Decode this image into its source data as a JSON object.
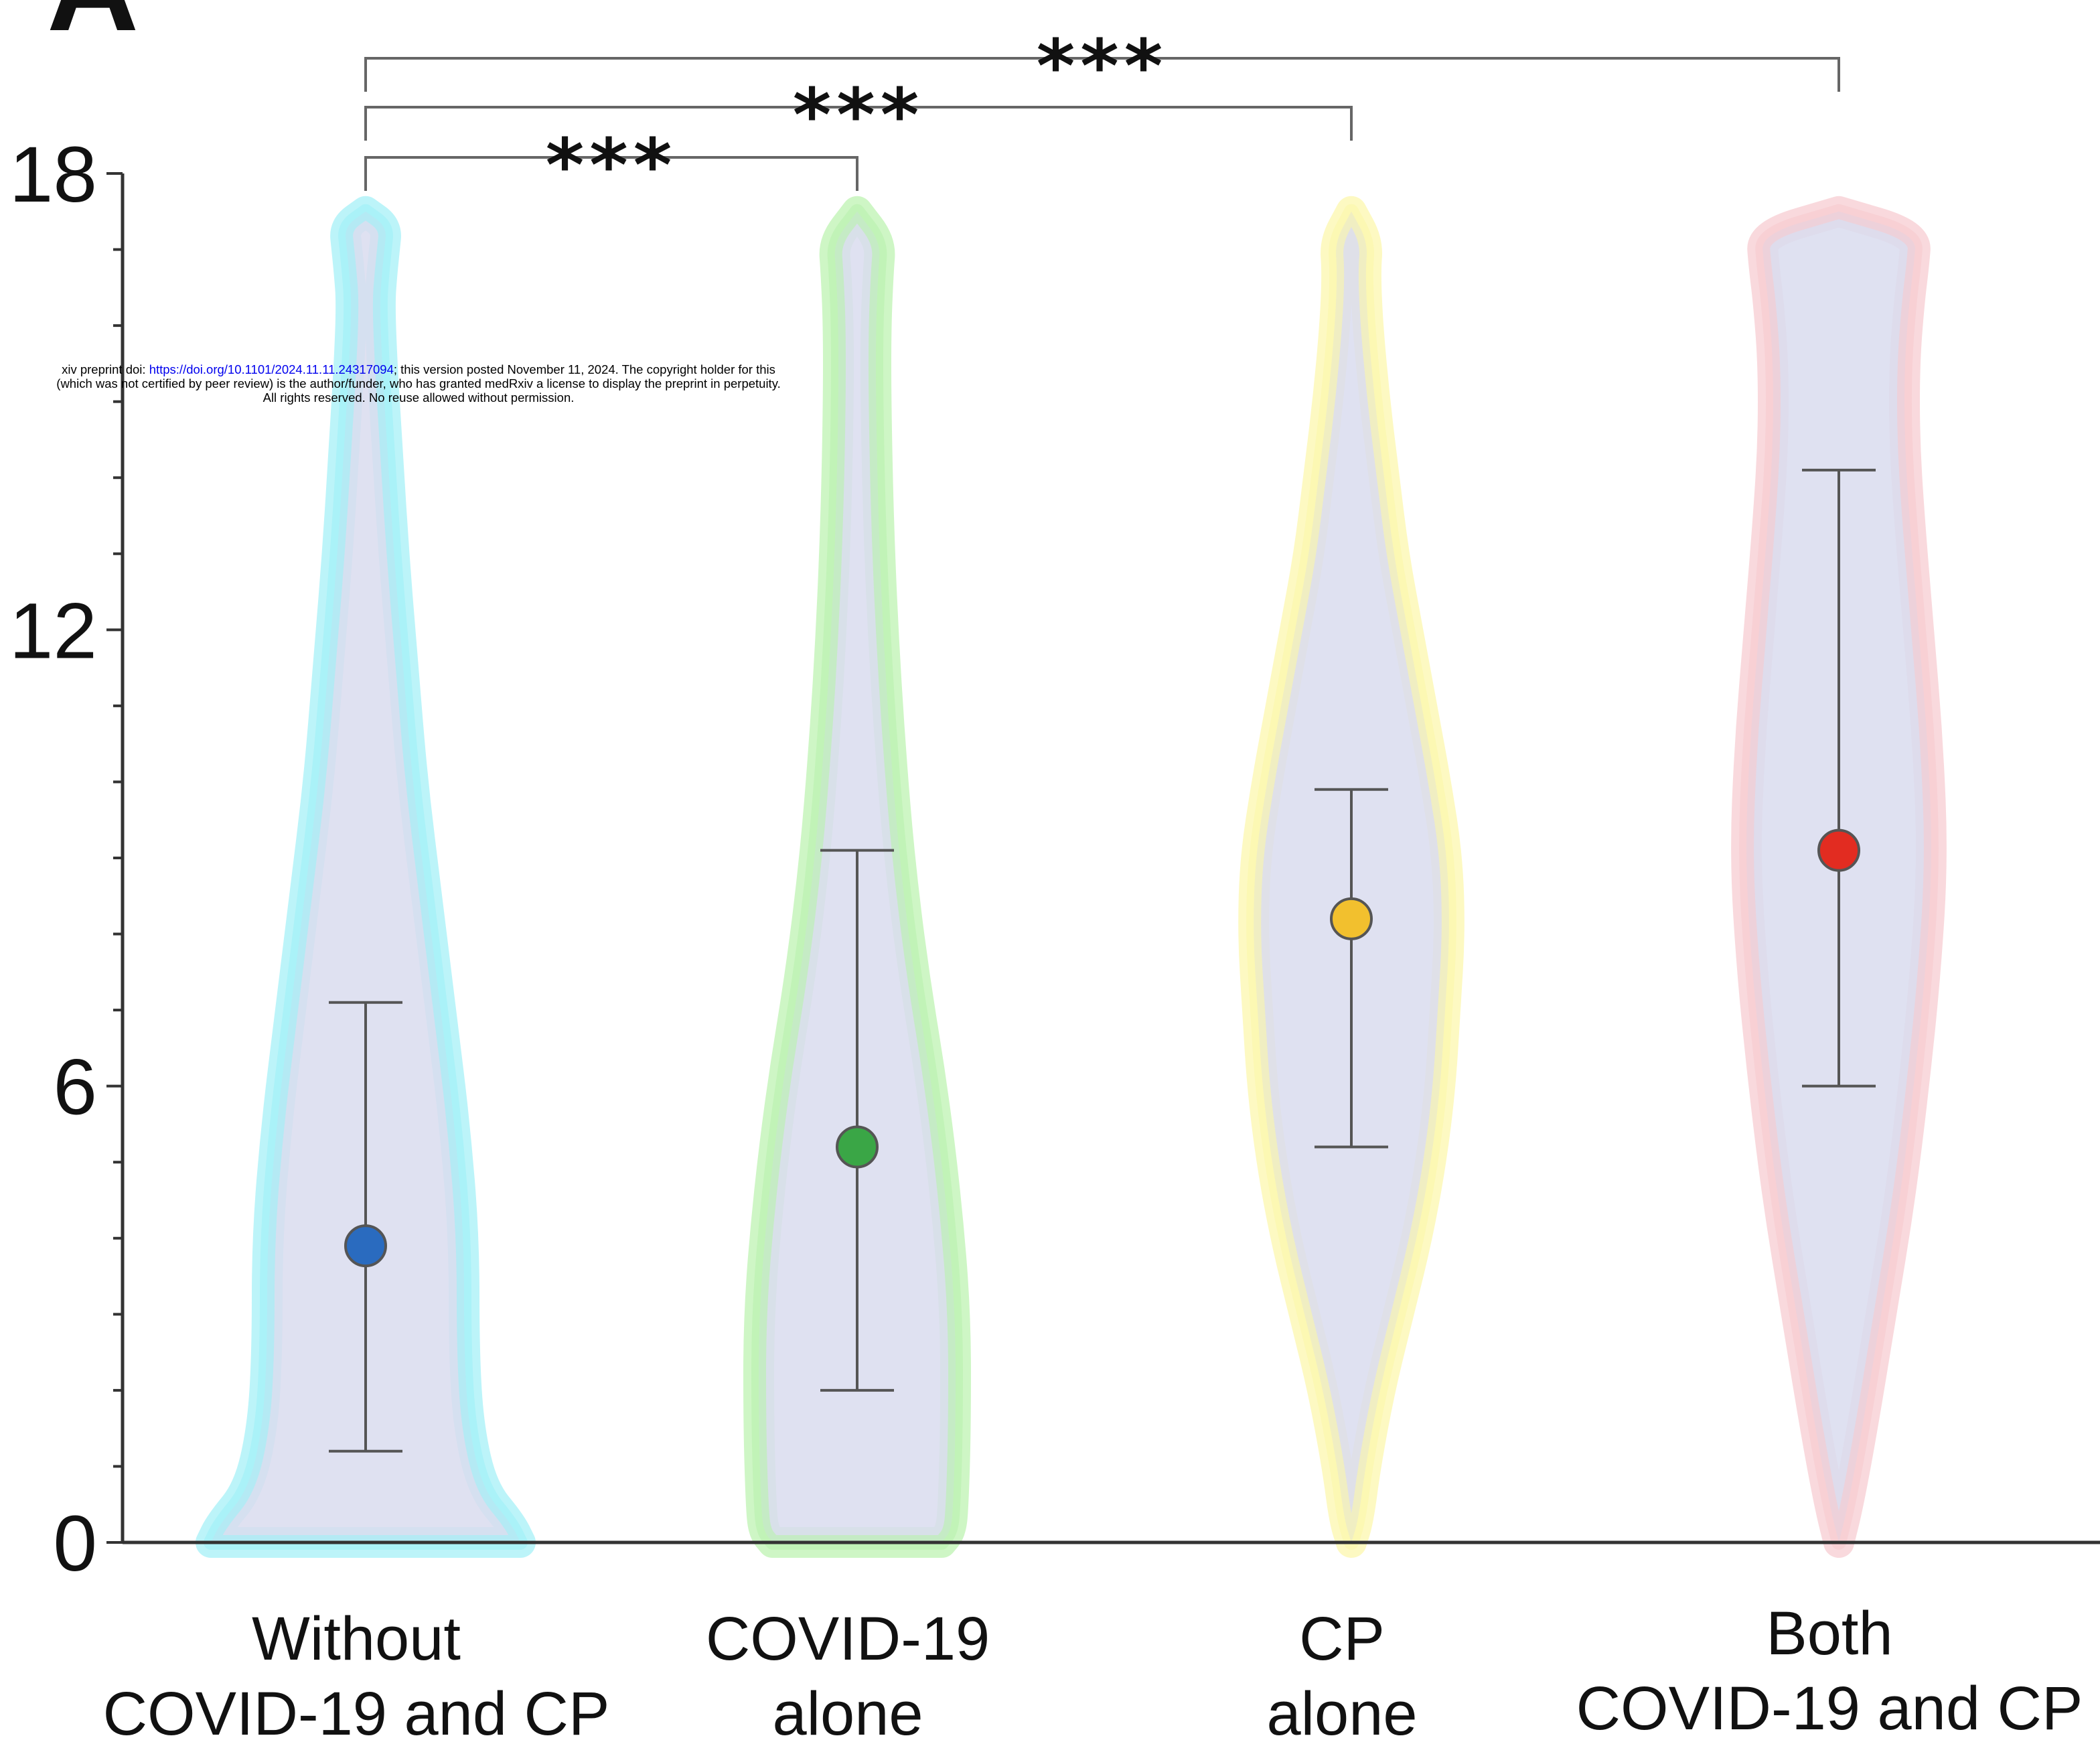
{
  "panel_letter": "A",
  "preprint_notice": {
    "line1_prefix": "xiv preprint doi: ",
    "doi_link": "https://doi.org/10.1101/2024.11.11.24317094",
    "line1_suffix": "; this version posted November 11, 2024. The copyright holder for this",
    "line2": "(which was not certified by peer review) is the author/funder, who has granted medRxiv a license to display the preprint in perpetuity.",
    "line3": "All rights reserved. No reuse allowed without permission."
  },
  "chart_data": {
    "type": "violin",
    "title": "",
    "xlabel": "",
    "ylabel": "",
    "ylim": [
      0,
      18
    ],
    "yticks": [
      0,
      6,
      12,
      18
    ],
    "ytick_labels": [
      "0",
      "6",
      "12",
      "18"
    ],
    "grid": false,
    "categories": [
      {
        "line1": "Without",
        "line2": "COVID-19 and CP"
      },
      {
        "line1": "COVID-19",
        "line2": "alone"
      },
      {
        "line1": "CP",
        "line2": "alone"
      },
      {
        "line1": "Both",
        "line2": "COVID-19 and CP"
      }
    ],
    "series": [
      {
        "mean": 3.9,
        "err_low": 1.2,
        "err_high": 7.1,
        "point_color": "#2a6bbf",
        "outline_color": "#9ff0f7",
        "density": [
          [
            0.0,
            0.33
          ],
          [
            0.25,
            0.31
          ],
          [
            0.7,
            0.25
          ],
          [
            1.5,
            0.22
          ],
          [
            2.5,
            0.21
          ],
          [
            4.0,
            0.21
          ],
          [
            5.5,
            0.19
          ],
          [
            7.0,
            0.16
          ],
          [
            8.5,
            0.13
          ],
          [
            10.0,
            0.1
          ],
          [
            11.5,
            0.08
          ],
          [
            13.0,
            0.06
          ],
          [
            14.5,
            0.045
          ],
          [
            15.5,
            0.035
          ],
          [
            16.3,
            0.03
          ],
          [
            16.7,
            0.035
          ],
          [
            17.0,
            0.04
          ],
          [
            17.3,
            0.045
          ],
          [
            17.5,
            0.0
          ]
        ]
      },
      {
        "mean": 5.2,
        "err_low": 2.0,
        "err_high": 9.1,
        "point_color": "#3aa646",
        "outline_color": "#b9f2ad",
        "density": [
          [
            0.0,
            0.18
          ],
          [
            0.15,
            0.2
          ],
          [
            0.5,
            0.205
          ],
          [
            1.5,
            0.21
          ],
          [
            3.0,
            0.21
          ],
          [
            4.5,
            0.19
          ],
          [
            6.0,
            0.16
          ],
          [
            7.5,
            0.12
          ],
          [
            9.0,
            0.09
          ],
          [
            10.5,
            0.07
          ],
          [
            12.0,
            0.055
          ],
          [
            13.5,
            0.045
          ],
          [
            15.0,
            0.04
          ],
          [
            16.0,
            0.04
          ],
          [
            16.7,
            0.045
          ],
          [
            17.1,
            0.05
          ],
          [
            17.5,
            0.0
          ]
        ]
      },
      {
        "mean": 8.2,
        "err_low": 5.2,
        "err_high": 9.9,
        "point_color": "#f2c02e",
        "outline_color": "#fcf7a8",
        "density": [
          [
            0.0,
            0.0
          ],
          [
            0.3,
            0.015
          ],
          [
            1.0,
            0.03
          ],
          [
            2.0,
            0.06
          ],
          [
            3.0,
            0.1
          ],
          [
            4.0,
            0.14
          ],
          [
            5.0,
            0.17
          ],
          [
            6.0,
            0.19
          ],
          [
            7.0,
            0.2
          ],
          [
            8.0,
            0.21
          ],
          [
            9.0,
            0.205
          ],
          [
            10.0,
            0.18
          ],
          [
            11.0,
            0.15
          ],
          [
            12.0,
            0.12
          ],
          [
            13.0,
            0.09
          ],
          [
            14.0,
            0.07
          ],
          [
            15.0,
            0.05
          ],
          [
            16.0,
            0.035
          ],
          [
            16.7,
            0.03
          ],
          [
            17.1,
            0.035
          ],
          [
            17.5,
            0.0
          ]
        ]
      },
      {
        "mean": 9.1,
        "err_low": 6.0,
        "err_high": 14.1,
        "point_color": "#e22c21",
        "outline_color": "#f7c9cf",
        "density": [
          [
            0.0,
            0.0
          ],
          [
            0.5,
            0.02
          ],
          [
            1.5,
            0.05
          ],
          [
            3.0,
            0.09
          ],
          [
            4.5,
            0.13
          ],
          [
            6.0,
            0.16
          ],
          [
            7.5,
            0.185
          ],
          [
            9.0,
            0.2
          ],
          [
            10.5,
            0.19
          ],
          [
            12.0,
            0.17
          ],
          [
            13.5,
            0.15
          ],
          [
            14.5,
            0.14
          ],
          [
            15.5,
            0.14
          ],
          [
            16.3,
            0.15
          ],
          [
            16.8,
            0.16
          ],
          [
            17.2,
            0.165
          ],
          [
            17.5,
            0.0
          ]
        ]
      }
    ],
    "comparisons": [
      {
        "from": 0,
        "to": 1,
        "label": "***"
      },
      {
        "from": 0,
        "to": 2,
        "label": "***"
      },
      {
        "from": 0,
        "to": 3,
        "label": "***"
      }
    ],
    "violin_fill": "#d9dcef",
    "point_stroke": "#555555",
    "axis_color": "#333333"
  }
}
